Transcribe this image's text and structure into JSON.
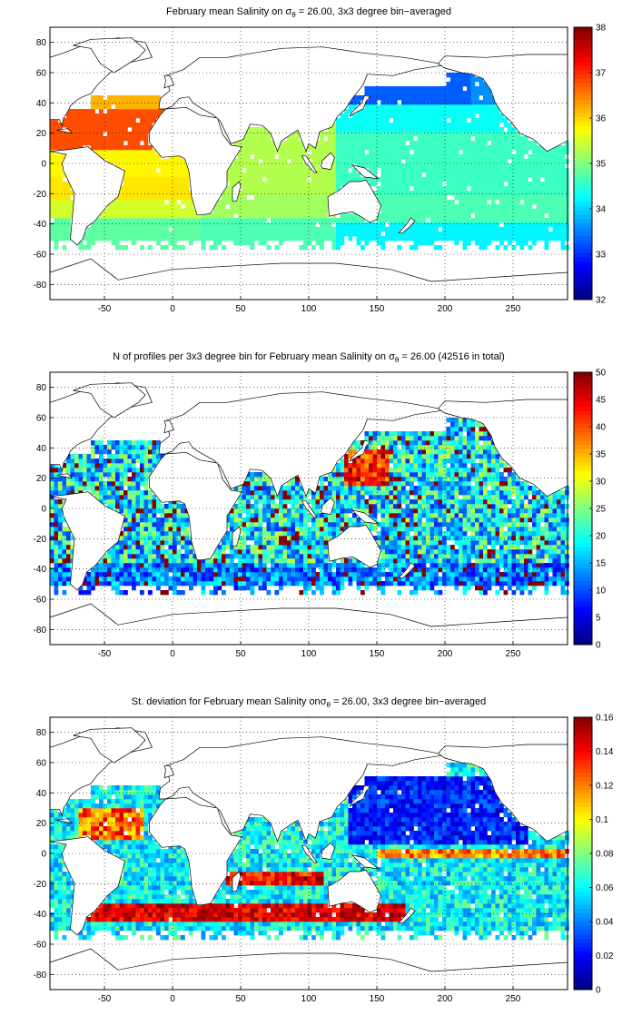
{
  "charts": [
    {
      "title_pre": "February mean Salinity on ",
      "title_sym": "σ",
      "title_sub": "θ",
      "title_post": " = 26.00, 3x3 degree bin−averaged",
      "colorbar": {
        "min": 32,
        "max": 38,
        "ticks": [
          "32",
          "33",
          "34",
          "35",
          "36",
          "37",
          "38"
        ]
      }
    },
    {
      "title_pre": "N of profiles per 3x3 degree bin for February mean Salinity on ",
      "title_sym": "σ",
      "title_sub": "θ",
      "title_post": " = 26.00 (42516 in total)",
      "colorbar": {
        "min": 0,
        "max": 50,
        "ticks": [
          "0",
          "5",
          "10",
          "15",
          "20",
          "25",
          "30",
          "35",
          "40",
          "45",
          "50"
        ]
      }
    },
    {
      "title_pre": "St. deviation for February mean Salinity on",
      "title_sym": "σ",
      "title_sub": "θ",
      "title_post": " = 26.00, 3x3 degree bin−averaged",
      "colorbar": {
        "min": 0,
        "max": 0.16,
        "ticks": [
          "0",
          "0.02",
          "0.04",
          "0.06",
          "0.08",
          "0.1",
          "0.12",
          "0.14",
          "0.16"
        ]
      }
    }
  ],
  "axes": {
    "x_ticks": [
      "-50",
      "0",
      "50",
      "100",
      "150",
      "200",
      "250"
    ],
    "y_ticks": [
      "80",
      "60",
      "40",
      "20",
      "0",
      "-20",
      "-40",
      "-60",
      "-80"
    ]
  },
  "chart_data": [
    {
      "type": "heatmap",
      "title": "February mean Salinity on σθ = 26.00, 3x3 degree bin−averaged",
      "xlim": [
        -90,
        290
      ],
      "ylim": [
        -90,
        90
      ],
      "x_ticks": [
        -50,
        0,
        50,
        100,
        150,
        200,
        250
      ],
      "y_ticks": [
        -80,
        -60,
        -40,
        -20,
        0,
        20,
        40,
        60,
        80
      ],
      "grid": true,
      "colorbar_range": [
        32,
        38
      ],
      "colormap": "jet",
      "bin_size_deg": 3,
      "regions": [
        {
          "region": "North Atlantic subtropics",
          "value": 36.8
        },
        {
          "region": "South Atlantic",
          "value": 35.8
        },
        {
          "region": "Indian Ocean",
          "value": 35.2
        },
        {
          "region": "North Pacific subpolar",
          "value": 33.2
        },
        {
          "region": "Pacific tropics",
          "value": 34.6
        },
        {
          "region": "Southern mid-latitudes",
          "value": 34.4
        }
      ]
    },
    {
      "type": "heatmap",
      "title": "N of profiles per 3x3 degree bin for February mean Salinity on σθ = 26.00 (42516 in total)",
      "xlim": [
        -90,
        290
      ],
      "ylim": [
        -90,
        90
      ],
      "x_ticks": [
        -50,
        0,
        50,
        100,
        150,
        200,
        250
      ],
      "y_ticks": [
        -80,
        -60,
        -40,
        -20,
        0,
        20,
        40,
        60,
        80
      ],
      "grid": true,
      "colorbar_range": [
        0,
        50
      ],
      "colormap": "jet",
      "total_profiles": 42516,
      "regions": [
        {
          "region": "Kuroshio / NW Pacific",
          "value": 48
        },
        {
          "region": "Open ocean typical",
          "value": 15
        },
        {
          "region": "Southern mid-latitudes",
          "value": 10
        }
      ]
    },
    {
      "type": "heatmap",
      "title": "St. deviation for February mean Salinity on σθ = 26.00, 3x3 degree bin−averaged",
      "xlim": [
        -90,
        290
      ],
      "ylim": [
        -90,
        90
      ],
      "x_ticks": [
        -50,
        0,
        50,
        100,
        150,
        200,
        250
      ],
      "y_ticks": [
        -80,
        -60,
        -40,
        -20,
        0,
        20,
        40,
        60,
        80
      ],
      "grid": true,
      "colorbar_range": [
        0,
        0.16
      ],
      "colormap": "jet",
      "regions": [
        {
          "region": "North Pacific gyre",
          "value": 0.01
        },
        {
          "region": "Southern Ocean ~40S band",
          "value": 0.16
        },
        {
          "region": "Equatorial Pacific band",
          "value": 0.12
        },
        {
          "region": "Indian Ocean ~15S band",
          "value": 0.15
        }
      ]
    }
  ]
}
